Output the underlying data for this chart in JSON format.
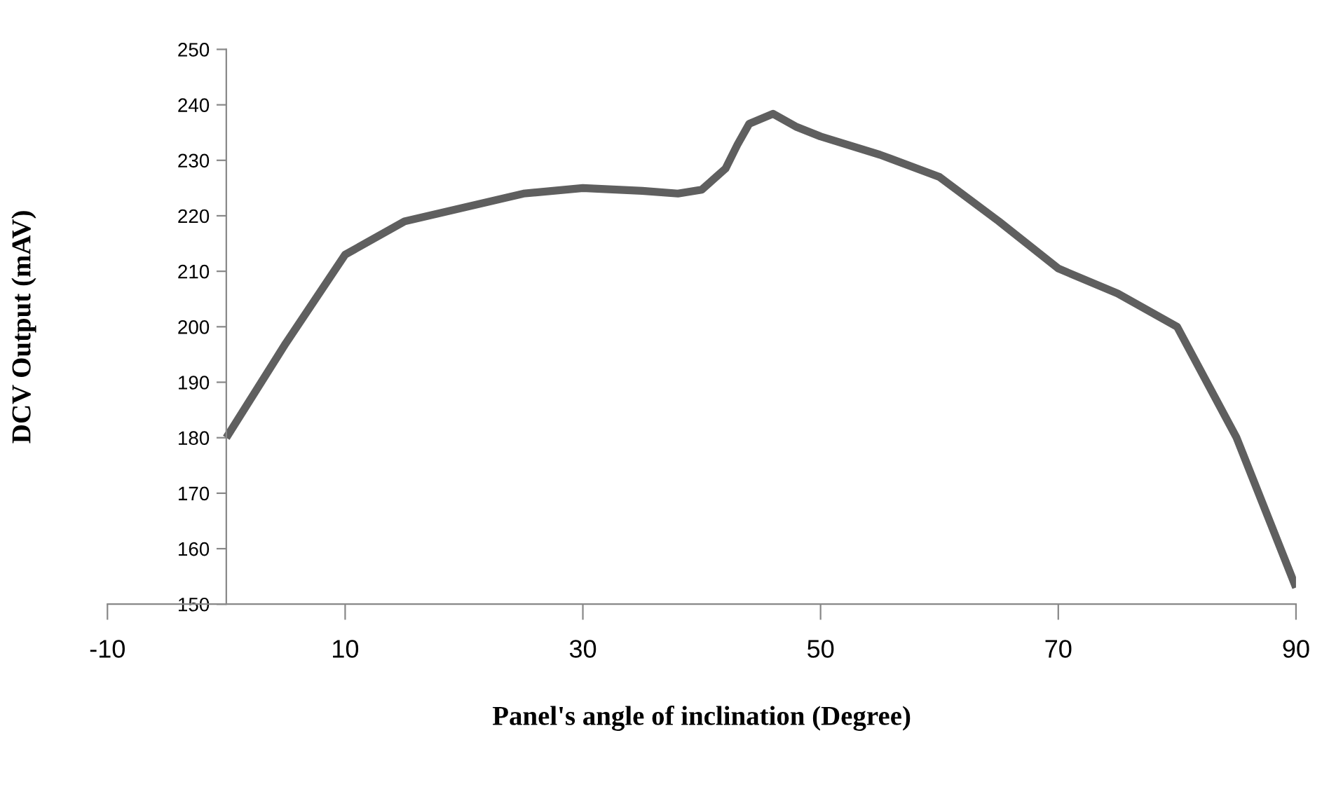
{
  "chart_data": {
    "type": "line",
    "xlabel": "Panel's angle of inclination (Degree)",
    "ylabel": "DCV Output (mAV)",
    "x": [
      0,
      5,
      10,
      15,
      20,
      25,
      30,
      35,
      38,
      40,
      42,
      43,
      44,
      46,
      48,
      50,
      55,
      60,
      65,
      70,
      75,
      80,
      85,
      90
    ],
    "series": [
      {
        "color": "#5f5f5f",
        "values": [
          180,
          197,
          213,
          219,
          221.5,
          224,
          225,
          224.5,
          224,
          224.7,
          228.5,
          232.8,
          236.6,
          238.4,
          236,
          234.3,
          231,
          227,
          219,
          210.5,
          206,
          200,
          180,
          153
        ]
      }
    ],
    "xlim": [
      -10,
      90
    ],
    "xticks": [
      -10,
      10,
      30,
      50,
      70,
      90
    ],
    "ylim": [
      150,
      250
    ],
    "yticks": [
      150,
      160,
      170,
      180,
      190,
      200,
      210,
      220,
      230,
      240,
      250
    ],
    "grid": false,
    "legend": false,
    "marker": "none",
    "line_style": "solid"
  }
}
